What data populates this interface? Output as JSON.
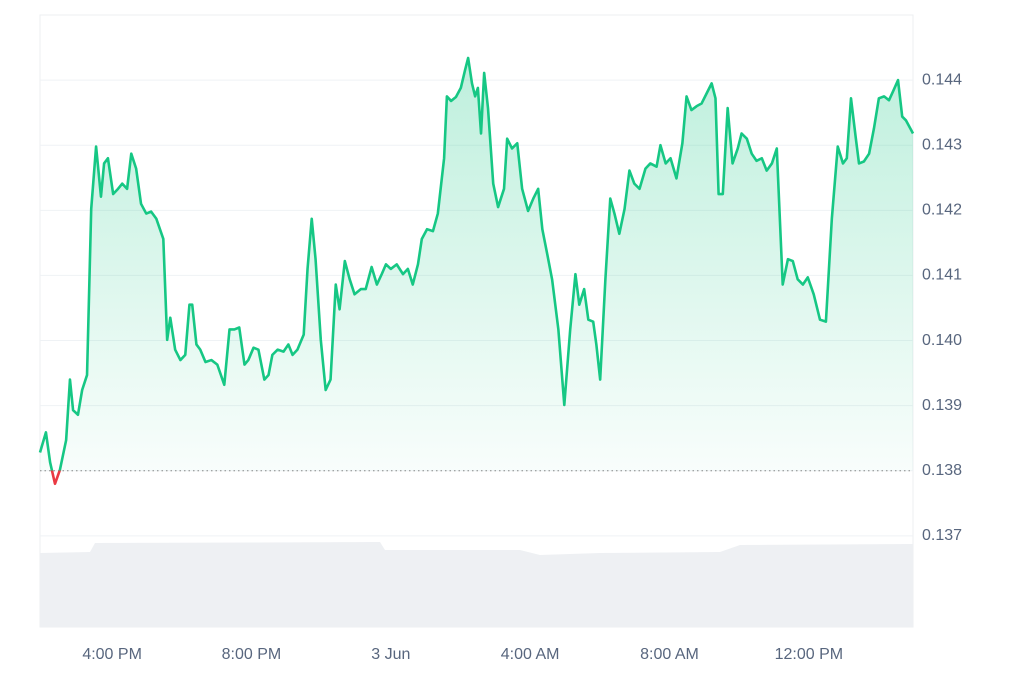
{
  "chart_data": {
    "type": "line",
    "x": [
      13.93,
      14.1,
      14.22,
      14.36,
      14.5,
      14.68,
      14.79,
      14.88,
      15.02,
      15.14,
      15.28,
      15.4,
      15.54,
      15.68,
      15.77,
      15.88,
      16.03,
      16.17,
      16.29,
      16.43,
      16.55,
      16.69,
      16.83,
      16.98,
      17.12,
      17.27,
      17.47,
      17.58,
      17.67,
      17.81,
      17.96,
      18.1,
      18.22,
      18.3,
      18.42,
      18.53,
      18.68,
      18.85,
      19.02,
      19.22,
      19.37,
      19.51,
      19.65,
      19.8,
      19.91,
      20.06,
      20.2,
      20.37,
      20.49,
      20.6,
      20.75,
      20.92,
      21.06,
      21.18,
      21.32,
      21.5,
      21.61,
      21.73,
      21.84,
      21.99,
      22.13,
      22.27,
      22.42,
      22.53,
      22.68,
      22.82,
      22.96,
      23.14,
      23.28,
      23.45,
      23.6,
      23.74,
      23.86,
      24.0,
      24.17,
      24.35,
      24.49,
      24.63,
      24.78,
      24.89,
      25.04,
      25.21,
      25.35,
      25.53,
      25.61,
      25.73,
      25.87,
      26.01,
      26.13,
      26.22,
      26.33,
      26.42,
      26.5,
      26.59,
      26.68,
      26.79,
      26.94,
      27.08,
      27.25,
      27.34,
      27.48,
      27.63,
      27.77,
      27.94,
      28.09,
      28.23,
      28.35,
      28.49,
      28.63,
      28.81,
      28.98,
      29.15,
      29.3,
      29.41,
      29.55,
      29.67,
      29.81,
      29.9,
      30.01,
      30.16,
      30.3,
      30.42,
      30.56,
      30.71,
      30.85,
      30.99,
      31.14,
      31.31,
      31.45,
      31.63,
      31.74,
      31.89,
      32.03,
      32.2,
      32.37,
      32.49,
      32.63,
      32.78,
      32.92,
      33.07,
      33.21,
      33.32,
      33.41,
      33.53,
      33.67,
      33.81,
      33.96,
      34.07,
      34.22,
      34.36,
      34.5,
      34.65,
      34.79,
      34.94,
      35.08,
      35.25,
      35.4,
      35.54,
      35.68,
      35.83,
      35.97,
      36.14,
      36.32,
      36.49,
      36.66,
      36.83,
      36.98,
      37.09,
      37.21,
      37.35,
      37.44,
      37.58,
      37.73,
      37.87,
      38.01,
      38.16,
      38.3,
      38.42,
      38.56,
      38.68,
      38.79,
      38.91,
      38.99
    ],
    "series": [
      {
        "color": "#16c784",
        "values": [
          0.13828,
          0.13859,
          0.13813,
          0.1378,
          0.13801,
          0.13847,
          0.1394,
          0.13893,
          0.13886,
          0.13924,
          0.13947,
          0.14202,
          0.14298,
          0.14221,
          0.14272,
          0.1428,
          0.14225,
          0.14233,
          0.14241,
          0.14233,
          0.14287,
          0.14264,
          0.1421,
          0.14195,
          0.14198,
          0.14187,
          0.14156,
          0.14001,
          0.14035,
          0.13986,
          0.1397,
          0.13978,
          0.14055,
          0.14055,
          0.13994,
          0.13986,
          0.13967,
          0.1397,
          0.13963,
          0.13932,
          0.14017,
          0.14017,
          0.1402,
          0.13963,
          0.1397,
          0.13989,
          0.13986,
          0.1394,
          0.13947,
          0.13978,
          0.13986,
          0.13983,
          0.13994,
          0.13978,
          0.13986,
          0.14009,
          0.1411,
          0.14187,
          0.14125,
          0.14001,
          0.13924,
          0.1394,
          0.14086,
          0.14048,
          0.14122,
          0.14094,
          0.14071,
          0.14079,
          0.14079,
          0.14113,
          0.14086,
          0.14102,
          0.14117,
          0.1411,
          0.14117,
          0.14102,
          0.1411,
          0.14086,
          0.14117,
          0.14156,
          0.14171,
          0.14168,
          0.14195,
          0.1428,
          0.14375,
          0.14368,
          0.14374,
          0.14388,
          0.14415,
          0.14434,
          0.14395,
          0.14375,
          0.14388,
          0.14318,
          0.14411,
          0.14357,
          0.14241,
          0.14205,
          0.14233,
          0.1431,
          0.14295,
          0.14303,
          0.14233,
          0.14199,
          0.14218,
          0.14233,
          0.14171,
          0.14133,
          0.14094,
          0.14017,
          0.13901,
          0.14017,
          0.14102,
          0.14055,
          0.14079,
          0.14032,
          0.14029,
          0.13994,
          0.1394,
          0.14094,
          0.14218,
          0.14195,
          0.14164,
          0.14202,
          0.14261,
          0.14241,
          0.14233,
          0.14264,
          0.14272,
          0.14267,
          0.143,
          0.14272,
          0.1428,
          0.14249,
          0.14303,
          0.14375,
          0.14354,
          0.1436,
          0.14364,
          0.1438,
          0.14395,
          0.14372,
          0.14225,
          0.14225,
          0.14357,
          0.14272,
          0.14295,
          0.14318,
          0.1431,
          0.14287,
          0.14276,
          0.1428,
          0.14261,
          0.14272,
          0.14295,
          0.14086,
          0.14125,
          0.14122,
          0.14094,
          0.14086,
          0.14097,
          0.14071,
          0.14032,
          0.14029,
          0.14187,
          0.14298,
          0.14272,
          0.1428,
          0.14372,
          0.1431,
          0.14272,
          0.14275,
          0.14287,
          0.14326,
          0.14372,
          0.14375,
          0.14369,
          0.14383,
          0.144,
          0.14344,
          0.14338,
          0.14326,
          0.14318
        ]
      }
    ],
    "negative_color": "#ea3943",
    "baseline": 0.138,
    "xlim": [
      13.93,
      38.99
    ],
    "ylim": [
      0.1356,
      0.145
    ],
    "xticks": [
      {
        "value": 16,
        "label": "4:00 PM"
      },
      {
        "value": 20,
        "label": "8:00 PM"
      },
      {
        "value": 24,
        "label": "3 Jun"
      },
      {
        "value": 28,
        "label": "4:00 AM"
      },
      {
        "value": 32,
        "label": "8:00 AM"
      },
      {
        "value": 36,
        "label": "12:00 PM"
      }
    ],
    "yticks": [
      0.137,
      0.138,
      0.139,
      {
        "value": 0.14,
        "label": "0.140"
      },
      0.141,
      0.142,
      0.143,
      0.144
    ],
    "grid": true
  }
}
